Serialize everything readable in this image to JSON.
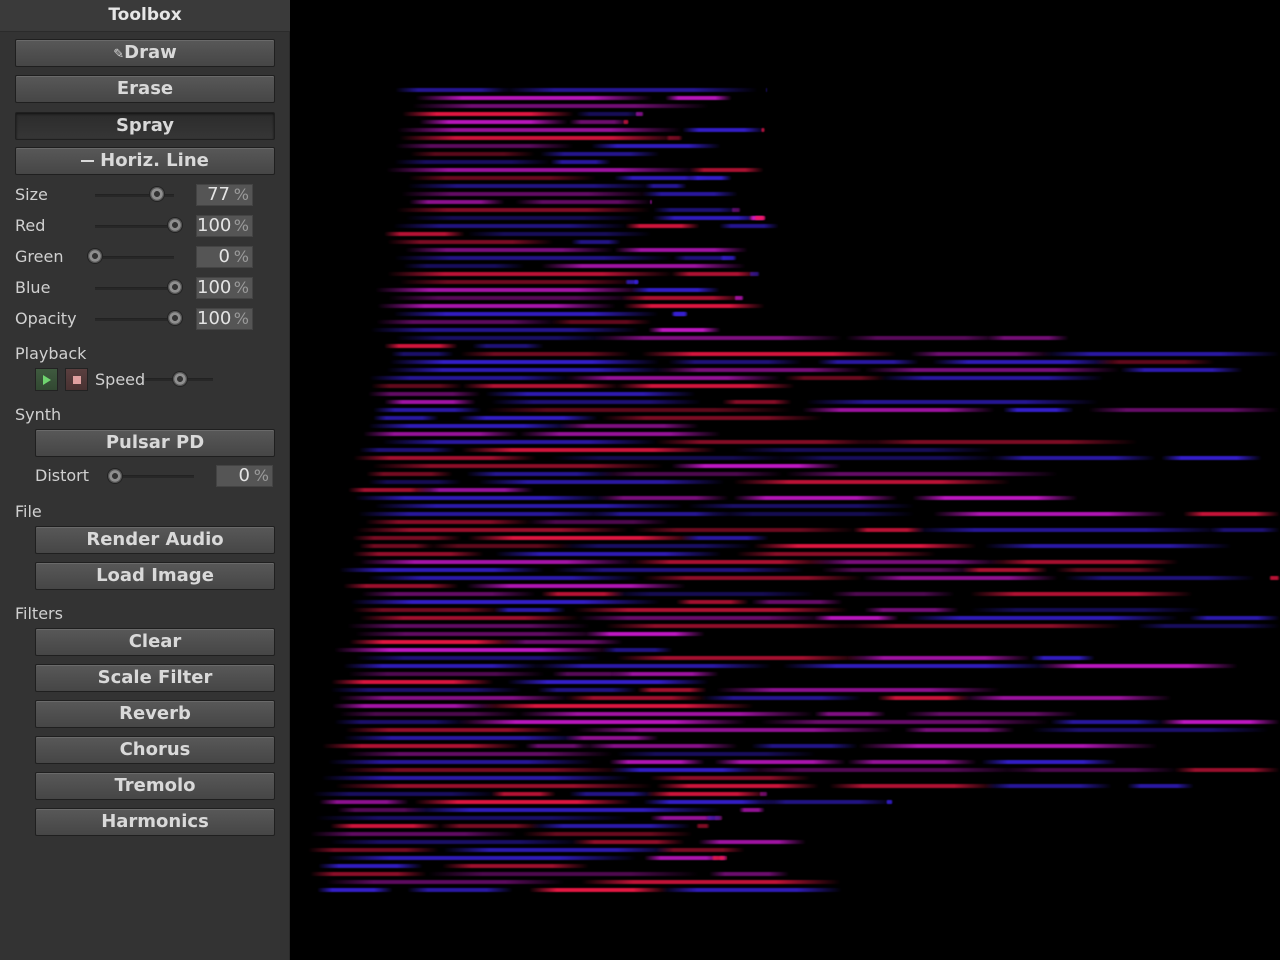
{
  "toolbox": {
    "title": "Toolbox",
    "tools": {
      "draw": "Draw",
      "erase": "Erase",
      "spray": "Spray",
      "horiz_line": "Horiz. Line"
    },
    "sliders": [
      {
        "label": "Size",
        "value": "77",
        "unit": "%",
        "fraction": 0.77
      },
      {
        "label": "Red",
        "value": "100",
        "unit": "%",
        "fraction": 1.0
      },
      {
        "label": "Green",
        "value": "0",
        "unit": "%",
        "fraction": 0.0
      },
      {
        "label": "Blue",
        "value": "100",
        "unit": "%",
        "fraction": 1.0
      },
      {
        "label": "Opacity",
        "value": "100",
        "unit": "%",
        "fraction": 1.0
      }
    ],
    "playback": {
      "heading": "Playback",
      "speed_label": "Speed",
      "speed_fraction": 0.52
    },
    "synth": {
      "heading": "Synth",
      "engine": "Pulsar PD",
      "distort_label": "Distort",
      "distort_value": "0",
      "distort_unit": "%",
      "distort_fraction": 0.0
    },
    "file": {
      "heading": "File",
      "render_audio": "Render Audio",
      "load_image": "Load Image"
    },
    "filters": {
      "heading": "Filters",
      "items": [
        "Clear",
        "Scale Filter",
        "Reverb",
        "Chorus",
        "Tremolo",
        "Harmonics"
      ]
    }
  },
  "colors": {
    "panel": "#333333",
    "canvas": "#000000",
    "red_stroke": "#ff1a4a",
    "magenta_stroke": "#d41ad8",
    "blue_stroke": "#3a22e0"
  }
}
